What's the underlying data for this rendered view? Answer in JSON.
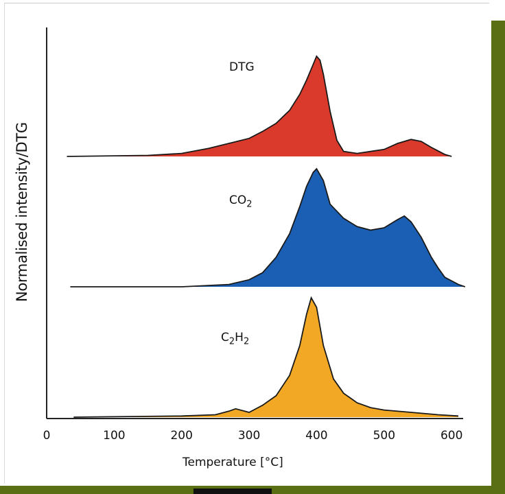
{
  "chart_data": {
    "type": "area",
    "layout": "stacked-panels",
    "title": "",
    "xlabel": "Temperature [°C]",
    "ylabel": "Normalised intensity/DTG",
    "xlim": [
      0,
      610
    ],
    "x_ticks": [
      "0",
      "100",
      "200",
      "300",
      "400",
      "500",
      "600"
    ],
    "series": [
      {
        "name": "DTG",
        "color": "#d93a2b",
        "points": [
          [
            30,
            0
          ],
          [
            150,
            0.01
          ],
          [
            200,
            0.03
          ],
          [
            240,
            0.08
          ],
          [
            270,
            0.13
          ],
          [
            300,
            0.18
          ],
          [
            320,
            0.25
          ],
          [
            340,
            0.33
          ],
          [
            360,
            0.46
          ],
          [
            375,
            0.62
          ],
          [
            385,
            0.76
          ],
          [
            395,
            0.92
          ],
          [
            400,
            1.0
          ],
          [
            405,
            0.96
          ],
          [
            410,
            0.82
          ],
          [
            420,
            0.45
          ],
          [
            430,
            0.16
          ],
          [
            440,
            0.05
          ],
          [
            460,
            0.03
          ],
          [
            480,
            0.05
          ],
          [
            500,
            0.07
          ],
          [
            520,
            0.13
          ],
          [
            540,
            0.17
          ],
          [
            555,
            0.15
          ],
          [
            570,
            0.09
          ],
          [
            590,
            0.02
          ],
          [
            600,
            0.0
          ]
        ]
      },
      {
        "name": "CO2",
        "color": "#1a5fb4",
        "points": [
          [
            35,
            0
          ],
          [
            200,
            0.0
          ],
          [
            270,
            0.02
          ],
          [
            300,
            0.06
          ],
          [
            320,
            0.12
          ],
          [
            340,
            0.25
          ],
          [
            360,
            0.45
          ],
          [
            375,
            0.68
          ],
          [
            385,
            0.85
          ],
          [
            395,
            0.97
          ],
          [
            400,
            1.0
          ],
          [
            410,
            0.9
          ],
          [
            420,
            0.7
          ],
          [
            440,
            0.58
          ],
          [
            460,
            0.51
          ],
          [
            480,
            0.48
          ],
          [
            500,
            0.5
          ],
          [
            520,
            0.57
          ],
          [
            530,
            0.6
          ],
          [
            540,
            0.55
          ],
          [
            555,
            0.42
          ],
          [
            570,
            0.25
          ],
          [
            580,
            0.16
          ],
          [
            590,
            0.08
          ],
          [
            610,
            0.02
          ],
          [
            620,
            0.0
          ]
        ]
      },
      {
        "name": "C2H2",
        "color": "#f2a824",
        "points": [
          [
            40,
            0
          ],
          [
            120,
            0.005
          ],
          [
            200,
            0.01
          ],
          [
            250,
            0.02
          ],
          [
            270,
            0.05
          ],
          [
            280,
            0.07
          ],
          [
            300,
            0.04
          ],
          [
            320,
            0.1
          ],
          [
            340,
            0.18
          ],
          [
            360,
            0.35
          ],
          [
            375,
            0.6
          ],
          [
            385,
            0.86
          ],
          [
            392,
            1.0
          ],
          [
            400,
            0.92
          ],
          [
            410,
            0.6
          ],
          [
            425,
            0.32
          ],
          [
            440,
            0.2
          ],
          [
            460,
            0.12
          ],
          [
            480,
            0.08
          ],
          [
            500,
            0.06
          ],
          [
            540,
            0.04
          ],
          [
            580,
            0.02
          ],
          [
            610,
            0.01
          ]
        ]
      }
    ],
    "grid": false,
    "legend": "inline-labels"
  },
  "labels": {
    "dtg": "DTG",
    "co2_main": "CO",
    "co2_sub": "2",
    "c2h2_c": "C",
    "c2h2_sub1": "2",
    "c2h2_h": "H",
    "c2h2_sub2": "2"
  },
  "colors": {
    "frame": "#5a6e14",
    "axis": "#222222"
  }
}
